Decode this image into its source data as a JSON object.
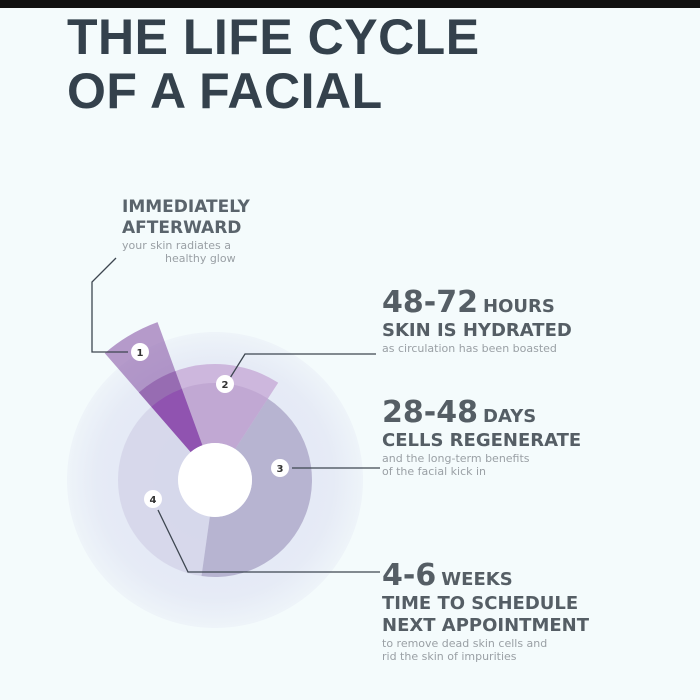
{
  "title": {
    "line1": "THE LIFE CYCLE",
    "line2": "OF A FACIAL"
  },
  "stages": [
    {
      "number": "1",
      "heading_line1": "IMMEDIATELY",
      "heading_line2": "AFTERWARD",
      "desc_line1": "your skin radiates a",
      "desc_line2": "healthy glow"
    },
    {
      "number": "2",
      "value": "48-72",
      "unit": "HOURS",
      "heading": "SKIN IS HYDRATED",
      "desc_line1": "as circulation has been boasted"
    },
    {
      "number": "3",
      "value": "28-48",
      "unit": "DAYS",
      "heading": "CELLS REGENERATE",
      "desc_line1": "and the long-term benefits",
      "desc_line2": "of the facial kick in"
    },
    {
      "number": "4",
      "value": "4-6",
      "unit": "WEEKS",
      "heading_line1": "TIME TO SCHEDULE",
      "heading_line2": "NEXT APPOINTMENT",
      "desc_line1": "to remove dead skin cells and",
      "desc_line2": "rid the skin of impurities"
    }
  ],
  "colors": {
    "title": "#34414c",
    "segment1": "#8a5aa8",
    "segment2": "#c4a6d4",
    "segment3": "#b4b1cf",
    "segment4": "#d5d6ea",
    "halo": "#e4e9f5"
  }
}
